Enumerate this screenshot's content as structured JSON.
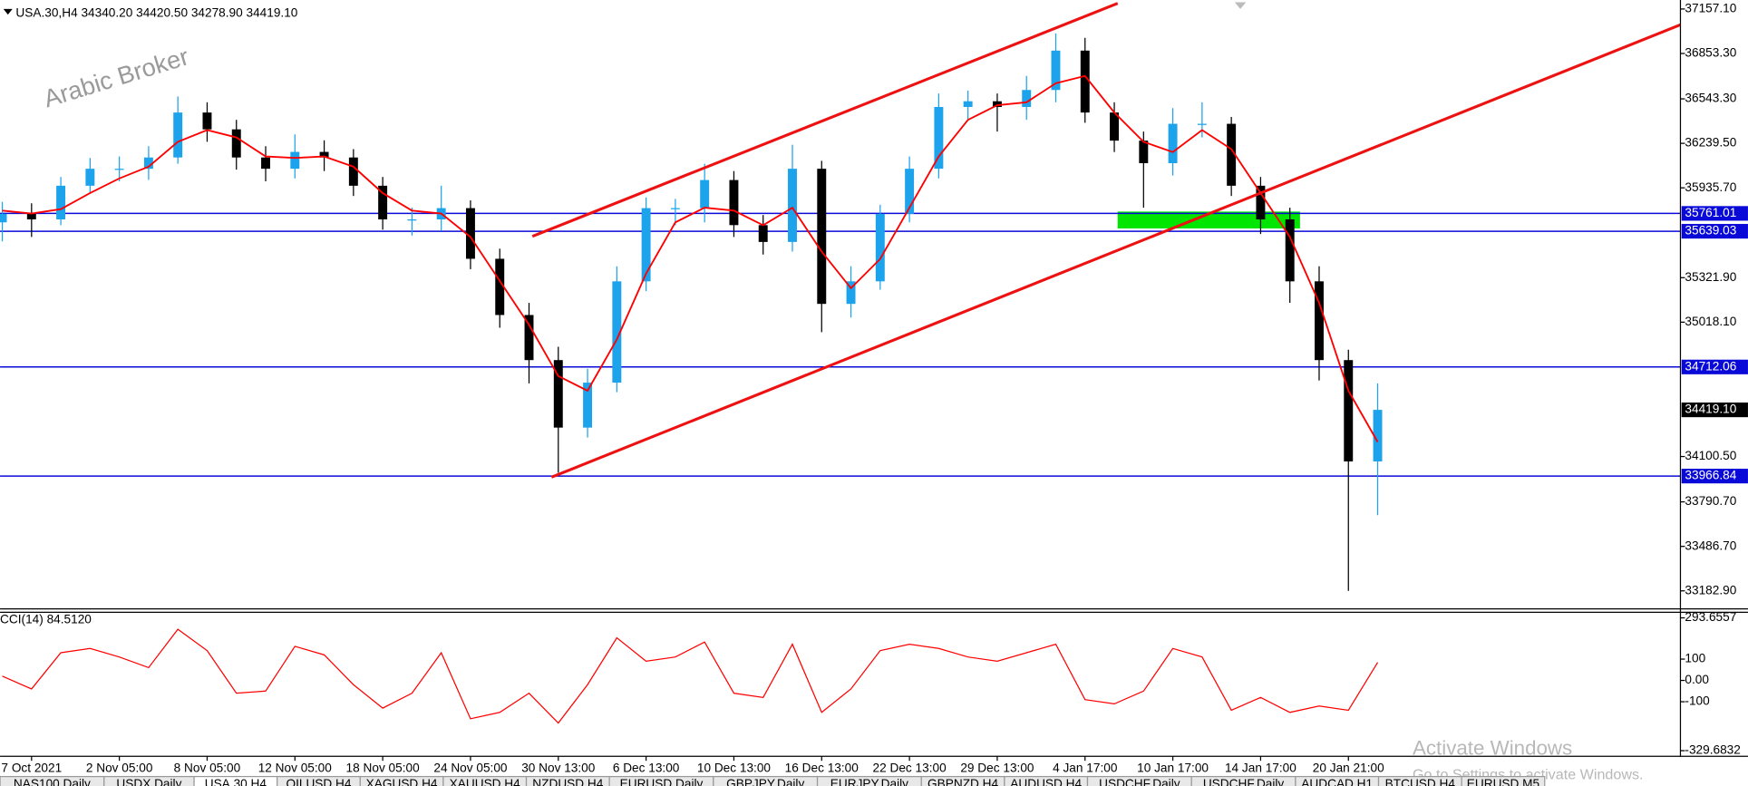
{
  "chart_data": [
    {
      "type": "candlestick",
      "title": "USA.30,H4  34340.20 34420.50 34278.90 34419.10",
      "categories": [
        null,
        "7 Oct 2021",
        null,
        null,
        "2 Nov 05:00",
        null,
        null,
        "8 Nov 05:00",
        null,
        null,
        "12 Nov 05:00",
        null,
        null,
        "18 Nov 05:00",
        null,
        null,
        "24 Nov 05:00",
        null,
        null,
        "30 Nov 13:00",
        null,
        null,
        "6 Dec 13:00",
        null,
        null,
        "10 Dec 13:00",
        null,
        null,
        "16 Dec 13:00",
        null,
        null,
        "22 Dec 13:00",
        null,
        null,
        "29 Dec 13:00",
        null,
        null,
        "4 Jan 17:00",
        null,
        null,
        "10 Jan 17:00",
        null,
        null,
        "14 Jan 17:00",
        null,
        null,
        "20 Jan 21:00",
        null
      ],
      "open": [
        35700,
        35758,
        35720,
        35950,
        36066,
        36066,
        36143,
        36450,
        36335,
        36143,
        36066,
        36181,
        36143,
        35950,
        35720,
        35720,
        35797,
        35451,
        35067,
        34759,
        34298,
        34605,
        35297,
        35797,
        35797,
        35989,
        35681,
        35566,
        36066,
        35143,
        35297,
        35758,
        36066,
        36488,
        36527,
        36488,
        36604,
        36873,
        36450,
        36258,
        36104,
        36373,
        36373,
        35950,
        35720,
        35297,
        34759,
        34067
      ],
      "high": [
        35840,
        35830,
        36010,
        36140,
        36150,
        36220,
        36560,
        36520,
        36400,
        36220,
        36300,
        36260,
        36200,
        36010,
        35800,
        35950,
        35850,
        35520,
        35150,
        34850,
        34700,
        35400,
        35870,
        35860,
        36100,
        36050,
        35750,
        36230,
        36120,
        35400,
        35820,
        36150,
        36580,
        36600,
        36580,
        36700,
        36990,
        36960,
        36520,
        36320,
        36480,
        36520,
        36420,
        36010,
        35800,
        35400,
        34830,
        34600
      ],
      "low": [
        35570,
        35600,
        35680,
        35900,
        35980,
        35990,
        36100,
        36250,
        36060,
        35980,
        36000,
        36050,
        35880,
        35650,
        35610,
        35640,
        35380,
        34980,
        34600,
        33990,
        34230,
        34540,
        35230,
        35680,
        35700,
        35600,
        35480,
        35500,
        34950,
        35050,
        35240,
        35700,
        36000,
        36400,
        36320,
        36400,
        36520,
        36380,
        36180,
        35800,
        36020,
        36280,
        35880,
        35620,
        35150,
        34620,
        33183,
        33700
      ],
      "close": [
        35758,
        35720,
        35950,
        36066,
        36066,
        36143,
        36450,
        36335,
        36143,
        36066,
        36181,
        36143,
        35950,
        35720,
        35720,
        35797,
        35451,
        35067,
        34759,
        34298,
        34605,
        35297,
        35797,
        35797,
        35989,
        35681,
        35566,
        36066,
        35143,
        35297,
        35758,
        36066,
        36488,
        36527,
        36488,
        36604,
        36873,
        36450,
        36258,
        36104,
        36373,
        36373,
        35950,
        35720,
        35297,
        34759,
        34067,
        34419
      ],
      "up_color": "#1ca3ec",
      "down_color": "#000000",
      "overlay": {
        "color": "#ff0000",
        "values": [
          35780,
          35760,
          35790,
          35900,
          36000,
          36080,
          36250,
          36330,
          36280,
          36150,
          36140,
          36150,
          36080,
          35900,
          35780,
          35760,
          35600,
          35300,
          35000,
          34650,
          34550,
          34900,
          35350,
          35700,
          35800,
          35780,
          35680,
          35800,
          35500,
          35250,
          35450,
          35800,
          36150,
          36400,
          36500,
          36520,
          36650,
          36700,
          36450,
          36250,
          36180,
          36330,
          36200,
          35900,
          35600,
          35150,
          34550,
          34200
        ]
      },
      "levels": [
        35761.01,
        35639.03,
        34712.06,
        33966.84
      ],
      "level_color": "#0a0ad8",
      "current_price": {
        "value": 34419.1,
        "label": "34419.10"
      },
      "ylim": [
        33182.9,
        37157.1
      ],
      "yticks": [
        {
          "value": 37157.1,
          "label": "37157.10"
        },
        {
          "value": 36853.3,
          "label": "36853.30"
        },
        {
          "value": 36543.3,
          "label": "36543.30"
        },
        {
          "value": 36239.5,
          "label": "36239.50"
        },
        {
          "value": 35935.7,
          "label": "35935.70"
        },
        {
          "value": 35321.9,
          "label": "35321.90"
        },
        {
          "value": 35018.1,
          "label": "35018.10"
        },
        {
          "value": 34100.5,
          "label": "34100.50"
        },
        {
          "value": 33790.7,
          "label": "33790.70"
        },
        {
          "value": 33486.7,
          "label": "33486.70"
        },
        {
          "value": 33182.9,
          "label": "33182.90"
        }
      ]
    },
    {
      "type": "line",
      "title": "CCI(14) 84.5120",
      "color": "#ff0000",
      "values": [
        20,
        -40,
        130,
        150,
        110,
        60,
        240,
        140,
        -60,
        -50,
        160,
        120,
        -20,
        -130,
        -60,
        130,
        -180,
        -150,
        -60,
        -200,
        -20,
        200,
        90,
        110,
        180,
        -60,
        -80,
        170,
        -150,
        -40,
        140,
        170,
        150,
        110,
        90,
        130,
        170,
        -90,
        -110,
        -50,
        150,
        110,
        -140,
        -80,
        -150,
        -120,
        -140,
        84.512
      ],
      "ylim": [
        -329.6832,
        293.6557
      ],
      "yticks": [
        293.6557,
        100,
        {
          "value": 0,
          "label": "0.00"
        },
        -100,
        -329.6832
      ]
    }
  ],
  "watermark": "Arabic Broker",
  "activation": {
    "title": "Activate Windows",
    "text": "Go to Settings to activate Windows."
  },
  "tabs": [
    {
      "label": "NAS100,Daily"
    },
    {
      "label": "USDX,Daily"
    },
    {
      "label": "USA.30,H4",
      "active": true
    },
    {
      "label": "OILUSD,H4"
    },
    {
      "label": "XAGUSD,H4"
    },
    {
      "label": "XAUUSD,H4"
    },
    {
      "label": "NZDUSD,H4"
    },
    {
      "label": "EURUSD,Daily"
    },
    {
      "label": "GBPJPY,Daily"
    },
    {
      "label": "EURJPY,Daily"
    },
    {
      "label": "GBPNZD,H4"
    },
    {
      "label": "AUDUSD,H4"
    },
    {
      "label": "USDCHF,Daily"
    },
    {
      "label": "USDCHF,Daily"
    },
    {
      "label": "AUDCAD,H1"
    },
    {
      "label": "BTCUSD,H4"
    },
    {
      "label": "EURUSD,M5"
    }
  ]
}
